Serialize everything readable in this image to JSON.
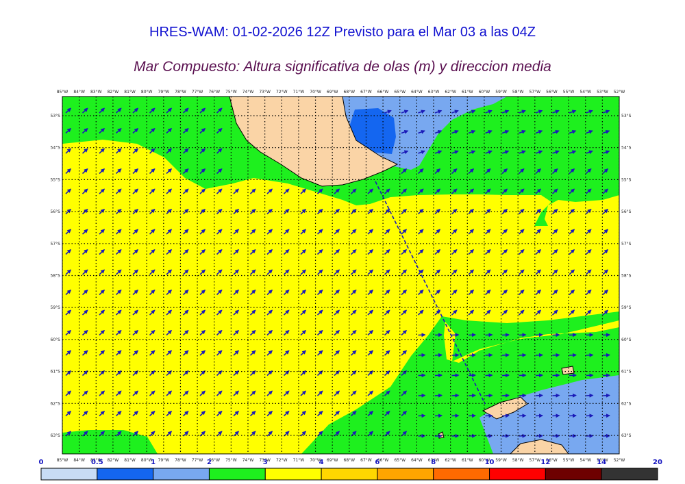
{
  "title": "HRES-WAM: 01-02-2026 12Z Previsto para el Mar 03 a las 04Z",
  "subtitle": "Mar Compuesto: Altura significativa de olas (m) y direccion media",
  "lon_labels": [
    "85°W",
    "84°W",
    "83°W",
    "82°W",
    "81°W",
    "80°W",
    "79°W",
    "78°W",
    "77°W",
    "76°W",
    "75°W",
    "74°W",
    "73°W",
    "72°W",
    "71°W",
    "70°W",
    "69°W",
    "68°W",
    "67°W",
    "66°W",
    "65°W",
    "64°W",
    "63°W",
    "62°W",
    "61°W",
    "60°W",
    "59°W",
    "58°W",
    "57°W",
    "56°W",
    "55°W",
    "54°W",
    "53°W",
    "52°W"
  ],
  "lat_labels": [
    "53°S",
    "54°S",
    "55°S",
    "56°S",
    "57°S",
    "58°S",
    "59°S",
    "60°S",
    "61°S",
    "62°S",
    "63°S"
  ],
  "colorbar": {
    "ticks": [
      "0",
      "0.5",
      "1",
      "2",
      "3",
      "4",
      "6",
      "8",
      "10",
      "12",
      "14",
      "20"
    ],
    "colors": [
      "#c8dcf5",
      "#1466f0",
      "#78a8f0",
      "#1ef01e",
      "#ffff00",
      "#ffd700",
      "#ffa500",
      "#ff6a00",
      "#ff0000",
      "#6e0000",
      "#333333"
    ]
  },
  "colors": {
    "land": "#fad4a6",
    "wave_1_2": "#78a8f0",
    "wave_0_5_1": "#1466f0",
    "wave_2_3": "#1ef01e",
    "wave_3_4": "#ffff00",
    "arrow": "#1a1ab8",
    "title": "#1010d0"
  }
}
